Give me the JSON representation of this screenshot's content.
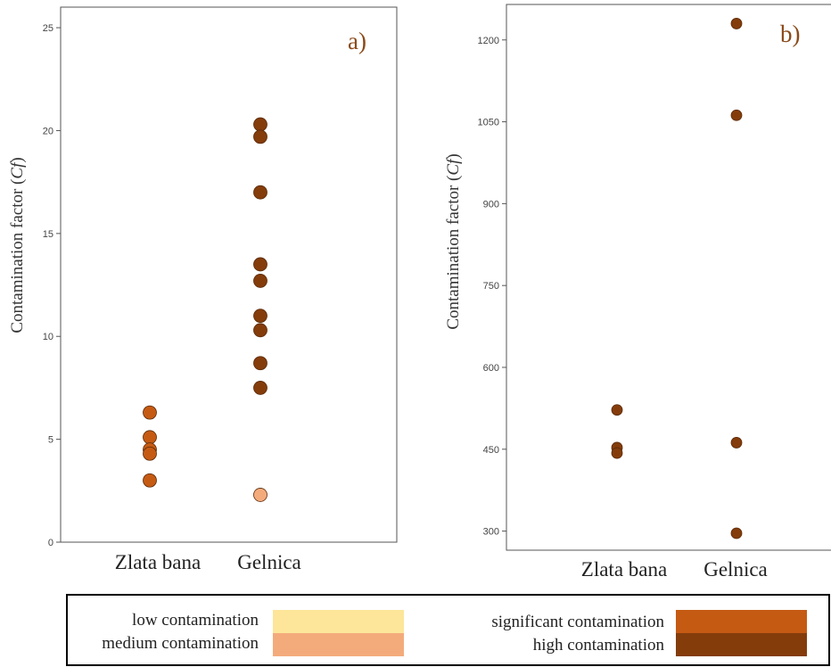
{
  "chart_data": [
    {
      "type": "scatter",
      "panel_label": "a)",
      "ylabel": "Contamination factor (",
      "ylabel_italic": "Cf",
      "ylabel_close": ")",
      "ylim": [
        0,
        26
      ],
      "yticks": [
        0,
        5,
        10,
        15,
        20,
        25
      ],
      "categories": [
        "Zlata bana",
        "Gelnica"
      ],
      "grid": false,
      "points": [
        {
          "category": "Zlata bana",
          "y": 6.3,
          "class": "significant"
        },
        {
          "category": "Zlata bana",
          "y": 5.1,
          "class": "significant"
        },
        {
          "category": "Zlata bana",
          "y": 4.5,
          "class": "significant"
        },
        {
          "category": "Zlata bana",
          "y": 4.3,
          "class": "significant"
        },
        {
          "category": "Zlata bana",
          "y": 3.0,
          "class": "significant"
        },
        {
          "category": "Gelnica",
          "y": 20.3,
          "class": "high"
        },
        {
          "category": "Gelnica",
          "y": 19.7,
          "class": "high"
        },
        {
          "category": "Gelnica",
          "y": 17.0,
          "class": "high"
        },
        {
          "category": "Gelnica",
          "y": 13.5,
          "class": "high"
        },
        {
          "category": "Gelnica",
          "y": 12.7,
          "class": "high"
        },
        {
          "category": "Gelnica",
          "y": 11.0,
          "class": "high"
        },
        {
          "category": "Gelnica",
          "y": 10.3,
          "class": "high"
        },
        {
          "category": "Gelnica",
          "y": 8.7,
          "class": "high"
        },
        {
          "category": "Gelnica",
          "y": 7.5,
          "class": "high"
        },
        {
          "category": "Gelnica",
          "y": 2.3,
          "class": "medium"
        }
      ]
    },
    {
      "type": "scatter",
      "panel_label": "b)",
      "ylabel": "Contamination factor (",
      "ylabel_italic": "Cf",
      "ylabel_close": ")",
      "ylim": [
        265,
        1265
      ],
      "yticks": [
        300,
        450,
        600,
        750,
        900,
        1050,
        1200
      ],
      "categories": [
        "Zlata bana",
        "Gelnica"
      ],
      "grid": false,
      "points": [
        {
          "category": "Zlata bana",
          "y": 522,
          "class": "high"
        },
        {
          "category": "Zlata bana",
          "y": 453,
          "class": "high"
        },
        {
          "category": "Zlata bana",
          "y": 443,
          "class": "high"
        },
        {
          "category": "Gelnica",
          "y": 1230,
          "class": "high"
        },
        {
          "category": "Gelnica",
          "y": 1062,
          "class": "high"
        },
        {
          "category": "Gelnica",
          "y": 462,
          "class": "high"
        },
        {
          "category": "Gelnica",
          "y": 296,
          "class": "high"
        }
      ]
    }
  ],
  "legend": {
    "placement": "bottom",
    "items": [
      {
        "key": "low",
        "label": "low contamination",
        "color": "#fde69a"
      },
      {
        "key": "medium",
        "label": "medium contamination",
        "color": "#f4ab7c"
      },
      {
        "key": "significant",
        "label": "significant contamination",
        "color": "#c55a13"
      },
      {
        "key": "high",
        "label": "high contamination",
        "color": "#843c0b"
      }
    ]
  }
}
